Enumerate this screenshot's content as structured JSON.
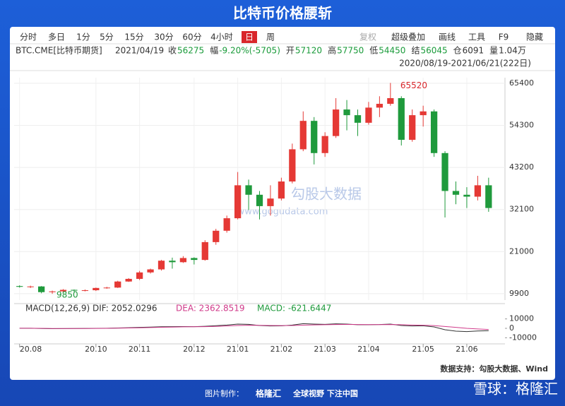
{
  "header": {
    "title": "比特币价格腰斩"
  },
  "toolbar": {
    "left": [
      "分时",
      "多日",
      "1分",
      "5分",
      "15分",
      "30分",
      "60分",
      "4小时",
      "日",
      "周"
    ],
    "active": "日",
    "right": [
      "复权",
      "超级叠加",
      "画线",
      "工具",
      "F9",
      "隐藏"
    ]
  },
  "info": {
    "symbol": "BTC.CME[比特币期货]",
    "date": "2021/04/19",
    "fields": [
      {
        "label": "收",
        "value": "56275",
        "color": "#1a9b3a"
      },
      {
        "label": "幅",
        "value": "-9.20%(-5705)",
        "color": "#1a9b3a"
      },
      {
        "label": "开",
        "value": "57120",
        "color": "#1a9b3a"
      },
      {
        "label": "高",
        "value": "57750",
        "color": "#1a9b3a"
      },
      {
        "label": "低",
        "value": "54450",
        "color": "#1a9b3a"
      },
      {
        "label": "结",
        "value": "56045",
        "color": "#1a9b3a"
      },
      {
        "label": "仓",
        "value": "6091",
        "color": "#333333"
      },
      {
        "label": "量",
        "value": "1.04万",
        "color": "#333333"
      }
    ],
    "range": "2020/08/19-2021/06/21(222日)"
  },
  "watermark": {
    "brand": "勾股大数据",
    "url": "www.gogudata.com"
  },
  "chart_data": {
    "type": "candlestick",
    "up_color": "#e53935",
    "down_color": "#1f9a3c",
    "open": [
      11900,
      11700,
      11800,
      10300,
      10500,
      10900,
      10700,
      10800,
      11400,
      11500,
      13100,
      13800,
      15500,
      16300,
      18600,
      18200,
      19300,
      18800,
      23500,
      26500,
      29800,
      38500,
      36000,
      33000,
      35000,
      39500,
      48000,
      55500,
      47000,
      51500,
      58500,
      57000,
      55000,
      59000,
      60000,
      61500,
      50500,
      57000,
      58000,
      47000,
      37000,
      36000,
      35500,
      38500
    ],
    "high": [
      12100,
      12000,
      11900,
      10700,
      11100,
      11000,
      11000,
      11500,
      11700,
      13300,
      14000,
      15900,
      16500,
      18800,
      19400,
      19800,
      19500,
      24000,
      27000,
      30500,
      42000,
      40000,
      37000,
      38500,
      40500,
      49500,
      58000,
      56500,
      52500,
      61500,
      61000,
      58500,
      60500,
      62000,
      65520,
      62000,
      58500,
      59500,
      58500,
      47500,
      39500,
      38000,
      41000,
      40500
    ],
    "low": [
      11500,
      11400,
      10000,
      9850,
      10200,
      10400,
      10500,
      10600,
      11200,
      11400,
      13000,
      13500,
      15200,
      16000,
      16500,
      18000,
      17600,
      18600,
      22800,
      26000,
      29500,
      32000,
      29500,
      30500,
      34500,
      39000,
      47500,
      44000,
      46000,
      51000,
      53000,
      51500,
      54500,
      56500,
      59500,
      49000,
      50000,
      54000,
      46000,
      30000,
      33500,
      32500,
      34500,
      31500
    ],
    "close": [
      11700,
      11800,
      10300,
      10500,
      10900,
      10700,
      10800,
      11400,
      11500,
      13100,
      13800,
      15500,
      16300,
      18600,
      18200,
      19300,
      18800,
      23500,
      26500,
      29800,
      38500,
      36000,
      33000,
      35000,
      39500,
      48000,
      55500,
      47000,
      51500,
      58500,
      57000,
      55000,
      59000,
      60000,
      61500,
      50500,
      57000,
      58000,
      47000,
      37000,
      36000,
      35500,
      38500,
      32500
    ],
    "max_label": 65520,
    "min_label": 9850,
    "xlim": [
      -0.5,
      44.5
    ],
    "xticks": [
      {
        "value": 0,
        "label": "20.08"
      },
      {
        "value": 7,
        "label": "20.10"
      },
      {
        "value": 11,
        "label": "20.11"
      },
      {
        "value": 16,
        "label": "20.12"
      },
      {
        "value": 20,
        "label": "21.01"
      },
      {
        "value": 24,
        "label": "21.02"
      },
      {
        "value": 28,
        "label": "21.03"
      },
      {
        "value": 32,
        "label": "21.04"
      },
      {
        "value": 37,
        "label": "21.05"
      },
      {
        "value": 41,
        "label": "21.06"
      }
    ],
    "ylim": [
      8200,
      66900
    ],
    "yticks": [
      9900,
      21000,
      32100,
      43200,
      54300,
      65400
    ],
    "grid": true,
    "macd": {
      "legend": "MACD(12,26,9)",
      "dif_label": "DIF: 2052.0296",
      "dea_label": "DEA: 2362.8519",
      "macd_label": "MACD: -621.6447",
      "ylim": [
        -15000,
        15000
      ],
      "yticks": [
        10000,
        0,
        -10000
      ],
      "series": [
        {
          "name": "DIF",
          "color": "#333333",
          "values": [
            100,
            100,
            -200,
            -400,
            -300,
            -200,
            -100,
            0,
            100,
            400,
            700,
            1000,
            1300,
            1700,
            1800,
            1900,
            1800,
            2200,
            2800,
            3500,
            4500,
            4200,
            3000,
            2500,
            2600,
            3500,
            5000,
            4500,
            4200,
            4800,
            4500,
            3800,
            3800,
            4000,
            4500,
            3000,
            2500,
            2700,
            1500,
            -1500,
            -3000,
            -3500,
            -2800,
            -2500
          ]
        },
        {
          "name": "DEA",
          "color": "#d03a8a",
          "values": [
            100,
            100,
            0,
            -150,
            -200,
            -200,
            -150,
            -100,
            0,
            150,
            350,
            600,
            850,
            1100,
            1350,
            1550,
            1650,
            1800,
            2100,
            2500,
            3000,
            3300,
            3200,
            3000,
            2900,
            3000,
            3400,
            3700,
            3800,
            4000,
            4100,
            4000,
            3900,
            3900,
            4000,
            3800,
            3500,
            3300,
            2900,
            2000,
            1000,
            0,
            -700,
            -1200
          ]
        }
      ]
    }
  },
  "footer": {
    "source": "数据支持：勾股大数据、Wind",
    "made_by": "图片制作：",
    "brand": "格隆汇",
    "slogan": "全球视野 下注中国",
    "credit": "雪球：格隆汇"
  }
}
